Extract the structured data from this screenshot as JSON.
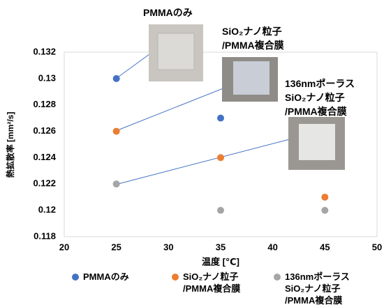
{
  "chart_data": {
    "type": "scatter",
    "x_label": "温度 [℃]",
    "y_label": "熱拡散率 [mm²/s]",
    "xlim": [
      20,
      50
    ],
    "xticks": [
      20,
      25,
      30,
      35,
      40,
      45,
      50
    ],
    "ylim": [
      0.118,
      0.132
    ],
    "yticks": [
      0.118,
      0.12,
      0.122,
      0.124,
      0.126,
      0.128,
      0.13,
      0.132
    ],
    "grid": false,
    "series": [
      {
        "name": "PMMAのみ",
        "color": "#4472c4",
        "x": [
          25,
          35
        ],
        "values": [
          0.13,
          0.127
        ]
      },
      {
        "name": "SiO₂ナノ粒子\n/PMMA複合膜",
        "color": "#ed7d31",
        "x": [
          25,
          35,
          45
        ],
        "values": [
          0.126,
          0.124,
          0.121
        ]
      },
      {
        "name": "136nmポーラス\nSiO₂ナノ粒子\n/PMMA複合膜",
        "color": "#a5a5a5",
        "x": [
          25,
          35,
          45
        ],
        "values": [
          0.122,
          0.12,
          0.12
        ]
      }
    ],
    "annotations": [
      "PMMAのみ",
      "SiO₂ナノ粒子\n/PMMA複合膜",
      "136nmポーラス\nSiO₂ナノ粒子\n/PMMA複合膜"
    ]
  }
}
